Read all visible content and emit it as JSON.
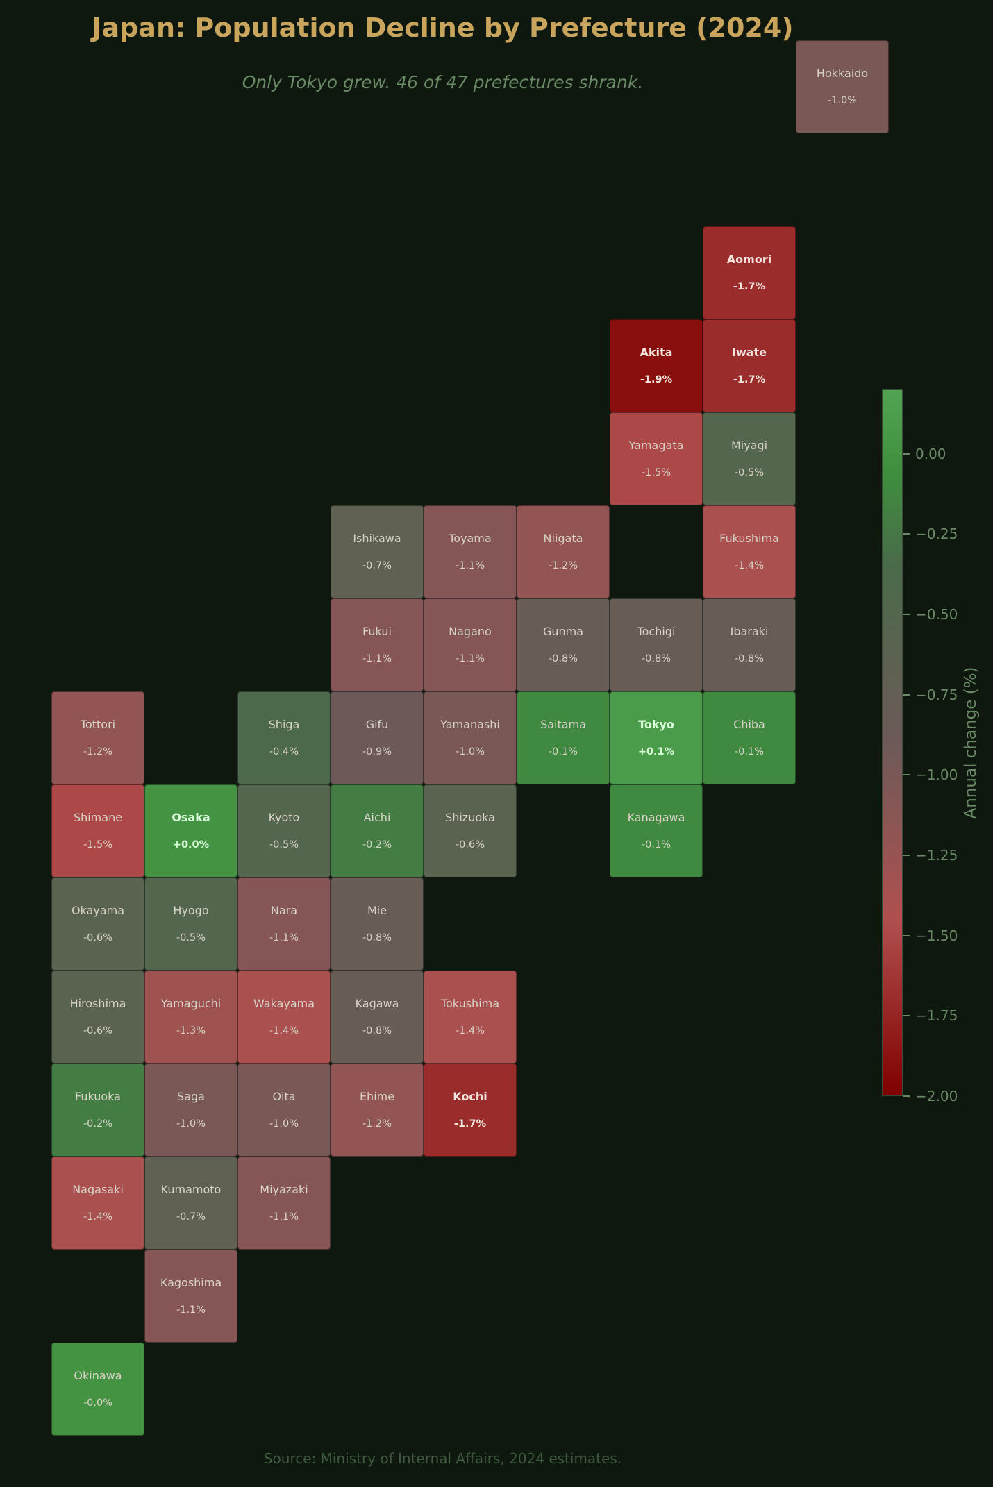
{
  "chart_data": {
    "type": "heatmap",
    "title": "Japan: Population Decline by Prefecture (2024)",
    "subtitle": "Only Tokyo grew. 46 of 47 prefectures shrank.",
    "source": "Source: Ministry of Internal Affairs, 2024 estimates.",
    "colorbar": {
      "label": "Annual change (%)",
      "range": [
        -2.0,
        0.2
      ],
      "ticks": [
        0.0,
        -0.25,
        -0.5,
        -0.75,
        -1.0,
        -1.25,
        -1.5,
        -1.75,
        -2.0
      ],
      "tick_labels": [
        "0.00",
        "−0.25",
        "−0.50",
        "−0.75",
        "−1.00",
        "−1.25",
        "−1.50",
        "−1.75",
        "−2.00"
      ],
      "colormap": [
        "#800000",
        "#b0504f",
        "#6d5a58",
        "#4a6a4a",
        "#3e8e3e",
        "#52a452"
      ]
    },
    "prefectures": [
      {
        "name": "Hokkaido",
        "row": 0,
        "col": 8,
        "value": -1.0,
        "label": "-1.0%"
      },
      {
        "name": "Aomori",
        "row": 2,
        "col": 7,
        "value": -1.7,
        "label": "-1.7%"
      },
      {
        "name": "Akita",
        "row": 3,
        "col": 6,
        "value": -1.9,
        "label": "-1.9%"
      },
      {
        "name": "Iwate",
        "row": 3,
        "col": 7,
        "value": -1.7,
        "label": "-1.7%"
      },
      {
        "name": "Yamagata",
        "row": 4,
        "col": 6,
        "value": -1.5,
        "label": "-1.5%"
      },
      {
        "name": "Miyagi",
        "row": 4,
        "col": 7,
        "value": -0.5,
        "label": "-0.5%"
      },
      {
        "name": "Ishikawa",
        "row": 5,
        "col": 3,
        "value": -0.7,
        "label": "-0.7%"
      },
      {
        "name": "Toyama",
        "row": 5,
        "col": 4,
        "value": -1.1,
        "label": "-1.1%"
      },
      {
        "name": "Niigata",
        "row": 5,
        "col": 5,
        "value": -1.2,
        "label": "-1.2%"
      },
      {
        "name": "Fukushima",
        "row": 5,
        "col": 7,
        "value": -1.4,
        "label": "-1.4%"
      },
      {
        "name": "Fukui",
        "row": 6,
        "col": 3,
        "value": -1.1,
        "label": "-1.1%"
      },
      {
        "name": "Nagano",
        "row": 6,
        "col": 4,
        "value": -1.1,
        "label": "-1.1%"
      },
      {
        "name": "Gunma",
        "row": 6,
        "col": 5,
        "value": -0.8,
        "label": "-0.8%"
      },
      {
        "name": "Tochigi",
        "row": 6,
        "col": 6,
        "value": -0.8,
        "label": "-0.8%"
      },
      {
        "name": "Ibaraki",
        "row": 6,
        "col": 7,
        "value": -0.8,
        "label": "-0.8%"
      },
      {
        "name": "Tottori",
        "row": 7,
        "col": 0,
        "value": -1.2,
        "label": "-1.2%"
      },
      {
        "name": "Shiga",
        "row": 7,
        "col": 2,
        "value": -0.4,
        "label": "-0.4%"
      },
      {
        "name": "Gifu",
        "row": 7,
        "col": 3,
        "value": -0.9,
        "label": "-0.9%"
      },
      {
        "name": "Yamanashi",
        "row": 7,
        "col": 4,
        "value": -1.0,
        "label": "-1.0%"
      },
      {
        "name": "Saitama",
        "row": 7,
        "col": 5,
        "value": -0.1,
        "label": "-0.1%"
      },
      {
        "name": "Tokyo",
        "row": 7,
        "col": 6,
        "value": 0.1,
        "label": "+0.1%"
      },
      {
        "name": "Chiba",
        "row": 7,
        "col": 7,
        "value": -0.1,
        "label": "-0.1%"
      },
      {
        "name": "Shimane",
        "row": 8,
        "col": 0,
        "value": -1.5,
        "label": "-1.5%"
      },
      {
        "name": "Osaka",
        "row": 8,
        "col": 1,
        "value": 0.0,
        "label": "+0.0%"
      },
      {
        "name": "Kyoto",
        "row": 8,
        "col": 2,
        "value": -0.5,
        "label": "-0.5%"
      },
      {
        "name": "Aichi",
        "row": 8,
        "col": 3,
        "value": -0.2,
        "label": "-0.2%"
      },
      {
        "name": "Shizuoka",
        "row": 8,
        "col": 4,
        "value": -0.6,
        "label": "-0.6%"
      },
      {
        "name": "Kanagawa",
        "row": 8,
        "col": 6,
        "value": -0.1,
        "label": "-0.1%"
      },
      {
        "name": "Okayama",
        "row": 9,
        "col": 0,
        "value": -0.6,
        "label": "-0.6%"
      },
      {
        "name": "Hyogo",
        "row": 9,
        "col": 1,
        "value": -0.5,
        "label": "-0.5%"
      },
      {
        "name": "Nara",
        "row": 9,
        "col": 2,
        "value": -1.1,
        "label": "-1.1%"
      },
      {
        "name": "Mie",
        "row": 9,
        "col": 3,
        "value": -0.8,
        "label": "-0.8%"
      },
      {
        "name": "Hiroshima",
        "row": 10,
        "col": 0,
        "value": -0.6,
        "label": "-0.6%"
      },
      {
        "name": "Yamaguchi",
        "row": 10,
        "col": 1,
        "value": -1.3,
        "label": "-1.3%"
      },
      {
        "name": "Wakayama",
        "row": 10,
        "col": 2,
        "value": -1.4,
        "label": "-1.4%"
      },
      {
        "name": "Kagawa",
        "row": 10,
        "col": 3,
        "value": -0.8,
        "label": "-0.8%"
      },
      {
        "name": "Tokushima",
        "row": 10,
        "col": 4,
        "value": -1.4,
        "label": "-1.4%"
      },
      {
        "name": "Fukuoka",
        "row": 11,
        "col": 0,
        "value": -0.2,
        "label": "-0.2%"
      },
      {
        "name": "Saga",
        "row": 11,
        "col": 1,
        "value": -1.0,
        "label": "-1.0%"
      },
      {
        "name": "Oita",
        "row": 11,
        "col": 2,
        "value": -1.0,
        "label": "-1.0%"
      },
      {
        "name": "Ehime",
        "row": 11,
        "col": 3,
        "value": -1.2,
        "label": "-1.2%"
      },
      {
        "name": "Kochi",
        "row": 11,
        "col": 4,
        "value": -1.7,
        "label": "-1.7%"
      },
      {
        "name": "Nagasaki",
        "row": 12,
        "col": 0,
        "value": -1.4,
        "label": "-1.4%"
      },
      {
        "name": "Kumamoto",
        "row": 12,
        "col": 1,
        "value": -0.7,
        "label": "-0.7%"
      },
      {
        "name": "Miyazaki",
        "row": 12,
        "col": 2,
        "value": -1.1,
        "label": "-1.1%"
      },
      {
        "name": "Kagoshima",
        "row": 13,
        "col": 1,
        "value": -1.1,
        "label": "-1.1%"
      },
      {
        "name": "Okinawa",
        "row": 14,
        "col": 0,
        "value": -0.0,
        "label": "-0.0%"
      }
    ]
  }
}
